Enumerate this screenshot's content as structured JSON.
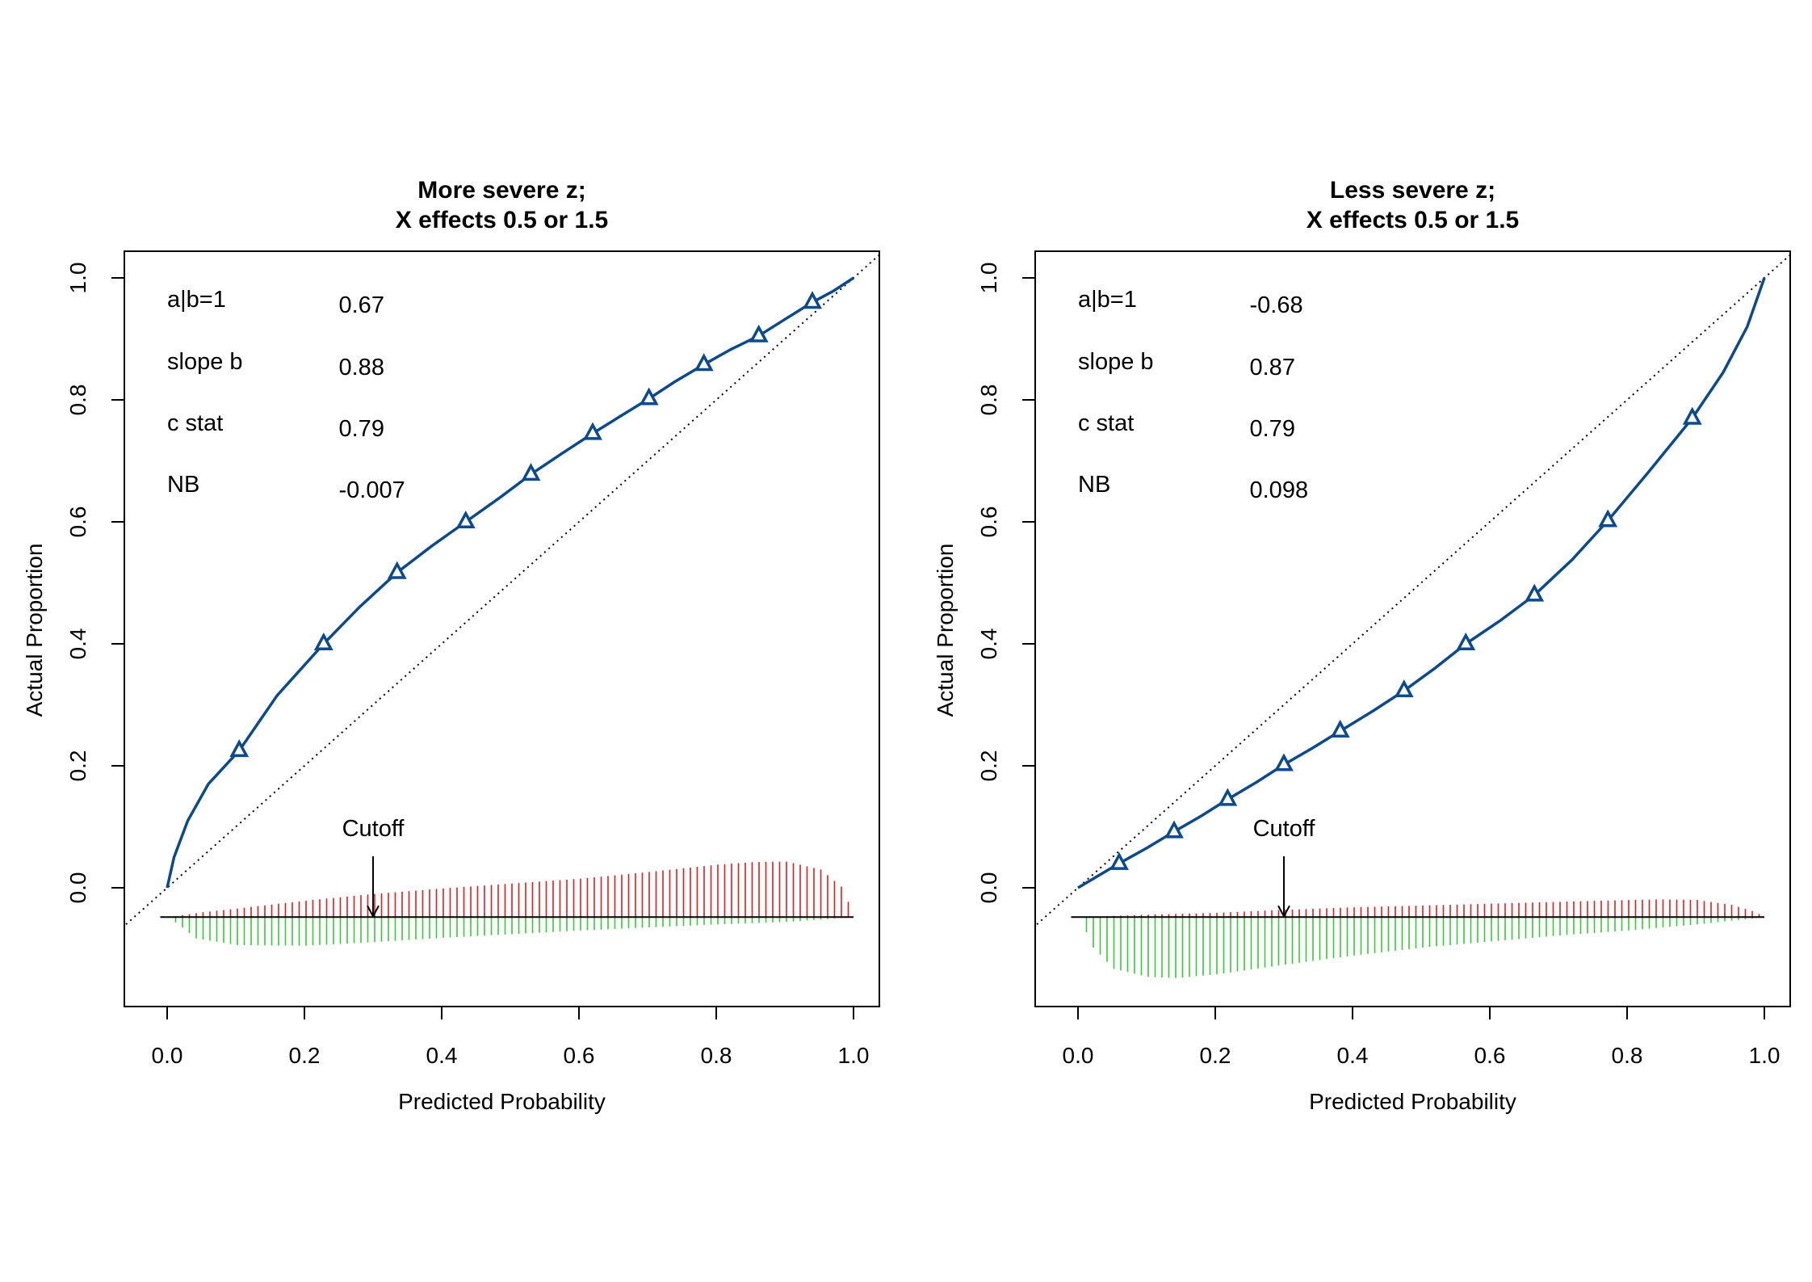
{
  "chart_data": [
    {
      "type": "line",
      "title_line1": "More severe z;",
      "title_line2": "X effects 0.5 or 1.5",
      "xlabel": "Predicted Probability",
      "ylabel": "Actual Proportion",
      "xlim": [
        -0.06,
        1.04
      ],
      "ylim": [
        -0.195,
        1.045
      ],
      "xticks": [
        "0.0",
        "0.2",
        "0.4",
        "0.6",
        "0.8",
        "1.0"
      ],
      "yticks": [
        "0.0",
        "0.2",
        "0.4",
        "0.6",
        "0.8",
        "1.0"
      ],
      "stats": [
        {
          "label": "a|b=1",
          "value": "0.67"
        },
        {
          "label": "slope b",
          "value": "0.88"
        },
        {
          "label": "c stat",
          "value": "0.79"
        },
        {
          "label": "NB",
          "value": "-0.007"
        }
      ],
      "cutoff": {
        "label": "Cutoff",
        "x": 0.3
      },
      "calibration_curve": {
        "color": "#0B4A8F",
        "x": [
          0.0,
          0.01,
          0.03,
          0.06,
          0.105,
          0.16,
          0.228,
          0.28,
          0.335,
          0.385,
          0.435,
          0.485,
          0.53,
          0.575,
          0.62,
          0.66,
          0.702,
          0.74,
          0.782,
          0.82,
          0.862,
          0.9,
          0.94,
          0.97,
          1.0
        ],
        "y": [
          0.0,
          0.05,
          0.11,
          0.17,
          0.225,
          0.315,
          0.4,
          0.46,
          0.517,
          0.56,
          0.6,
          0.64,
          0.678,
          0.712,
          0.745,
          0.773,
          0.802,
          0.83,
          0.858,
          0.882,
          0.905,
          0.932,
          0.96,
          0.978,
          1.0
        ]
      },
      "markers": {
        "shape": "triangle",
        "x": [
          0.105,
          0.228,
          0.335,
          0.435,
          0.53,
          0.62,
          0.702,
          0.782,
          0.862,
          0.94
        ],
        "y": [
          0.225,
          0.4,
          0.517,
          0.6,
          0.678,
          0.745,
          0.802,
          0.858,
          0.905,
          0.96
        ]
      },
      "diagonal": {
        "x": [
          -0.06,
          1.04
        ],
        "y": [
          -0.06,
          1.04
        ]
      },
      "histogram": {
        "baseline": -0.048,
        "events_color": "#E41A1C",
        "nonevents_color": "#33CC33",
        "events_profile": {
          "x": [
            0.0,
            0.05,
            0.1,
            0.2,
            0.3,
            0.4,
            0.5,
            0.6,
            0.7,
            0.8,
            0.85,
            0.9,
            0.95,
            0.98,
            1.0
          ],
          "h": [
            0.0,
            0.008,
            0.014,
            0.027,
            0.038,
            0.047,
            0.055,
            0.063,
            0.074,
            0.086,
            0.09,
            0.091,
            0.078,
            0.05,
            0.0
          ]
        },
        "nonevents_profile": {
          "x": [
            0.0,
            0.04,
            0.1,
            0.2,
            0.3,
            0.4,
            0.5,
            0.6,
            0.7,
            0.8,
            0.9,
            0.95,
            1.0
          ],
          "h": [
            0.0,
            0.035,
            0.046,
            0.047,
            0.041,
            0.034,
            0.028,
            0.022,
            0.017,
            0.012,
            0.008,
            0.004,
            0.0
          ]
        }
      }
    },
    {
      "type": "line",
      "title_line1": "Less severe z;",
      "title_line2": "X effects 0.5 or 1.5",
      "xlabel": "Predicted Probability",
      "ylabel": "Actual Proportion",
      "xlim": [
        -0.06,
        1.04
      ],
      "ylim": [
        -0.195,
        1.045
      ],
      "xticks": [
        "0.0",
        "0.2",
        "0.4",
        "0.6",
        "0.8",
        "1.0"
      ],
      "yticks": [
        "0.0",
        "0.2",
        "0.4",
        "0.6",
        "0.8",
        "1.0"
      ],
      "stats": [
        {
          "label": "a|b=1",
          "value": "-0.68"
        },
        {
          "label": "slope b",
          "value": "0.87"
        },
        {
          "label": "c stat",
          "value": "0.79"
        },
        {
          "label": "NB",
          "value": "0.098"
        }
      ],
      "cutoff": {
        "label": "Cutoff",
        "x": 0.3
      },
      "calibration_curve": {
        "color": "#0B4A8F",
        "x": [
          0.0,
          0.03,
          0.06,
          0.1,
          0.14,
          0.18,
          0.218,
          0.26,
          0.3,
          0.34,
          0.382,
          0.43,
          0.475,
          0.52,
          0.565,
          0.615,
          0.665,
          0.72,
          0.772,
          0.83,
          0.895,
          0.94,
          0.975,
          1.0
        ],
        "y": [
          0.0,
          0.02,
          0.04,
          0.065,
          0.092,
          0.118,
          0.145,
          0.173,
          0.202,
          0.228,
          0.257,
          0.29,
          0.323,
          0.36,
          0.4,
          0.438,
          0.48,
          0.538,
          0.602,
          0.68,
          0.77,
          0.845,
          0.92,
          1.0
        ]
      },
      "markers": {
        "shape": "triangle",
        "x": [
          0.06,
          0.14,
          0.218,
          0.3,
          0.382,
          0.475,
          0.565,
          0.665,
          0.772,
          0.895
        ],
        "y": [
          0.04,
          0.092,
          0.145,
          0.202,
          0.257,
          0.323,
          0.4,
          0.48,
          0.602,
          0.77
        ]
      },
      "diagonal": {
        "x": [
          -0.06,
          1.04
        ],
        "y": [
          -0.06,
          1.04
        ]
      },
      "histogram": {
        "baseline": -0.048,
        "events_color": "#E41A1C",
        "nonevents_color": "#33CC33",
        "events_profile": {
          "x": [
            0.0,
            0.05,
            0.1,
            0.2,
            0.3,
            0.4,
            0.5,
            0.6,
            0.7,
            0.8,
            0.85,
            0.9,
            0.95,
            0.98,
            1.0
          ],
          "h": [
            0.0,
            0.002,
            0.004,
            0.007,
            0.012,
            0.016,
            0.019,
            0.022,
            0.025,
            0.028,
            0.029,
            0.028,
            0.02,
            0.01,
            0.0
          ]
        },
        "nonevents_profile": {
          "x": [
            0.0,
            0.02,
            0.05,
            0.1,
            0.14,
            0.2,
            0.3,
            0.4,
            0.5,
            0.6,
            0.7,
            0.8,
            0.9,
            0.95,
            1.0
          ],
          "h": [
            0.0,
            0.05,
            0.085,
            0.098,
            0.1,
            0.094,
            0.078,
            0.063,
            0.05,
            0.04,
            0.03,
            0.022,
            0.012,
            0.006,
            0.0
          ]
        }
      }
    }
  ]
}
